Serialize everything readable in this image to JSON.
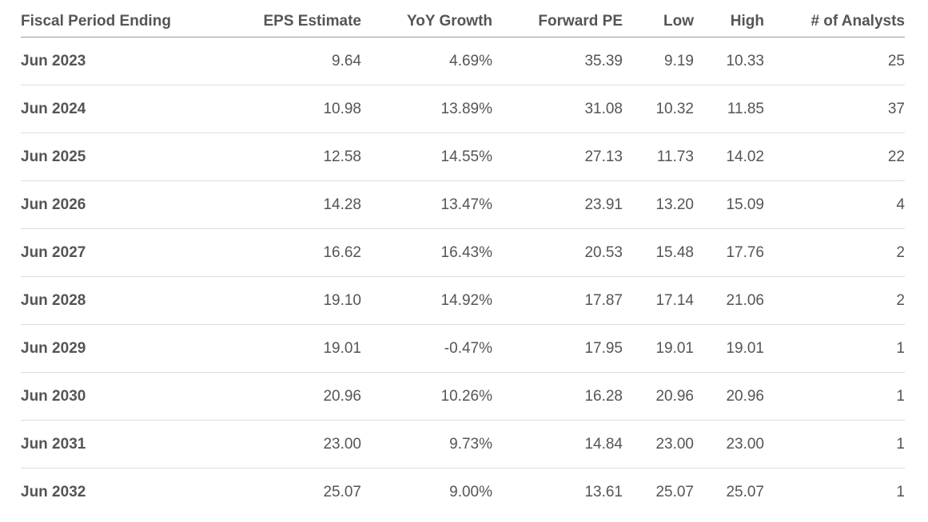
{
  "table": {
    "headers": {
      "period": "Fiscal Period Ending",
      "eps": "EPS Estimate",
      "yoy": "YoY Growth",
      "forward_pe": "Forward PE",
      "low": "Low",
      "high": "High",
      "analysts": "# of Analysts"
    },
    "rows": [
      {
        "period": "Jun 2023",
        "eps": "9.64",
        "yoy": "4.69%",
        "forward_pe": "35.39",
        "low": "9.19",
        "high": "10.33",
        "analysts": "25"
      },
      {
        "period": "Jun 2024",
        "eps": "10.98",
        "yoy": "13.89%",
        "forward_pe": "31.08",
        "low": "10.32",
        "high": "11.85",
        "analysts": "37"
      },
      {
        "period": "Jun 2025",
        "eps": "12.58",
        "yoy": "14.55%",
        "forward_pe": "27.13",
        "low": "11.73",
        "high": "14.02",
        "analysts": "22"
      },
      {
        "period": "Jun 2026",
        "eps": "14.28",
        "yoy": "13.47%",
        "forward_pe": "23.91",
        "low": "13.20",
        "high": "15.09",
        "analysts": "4"
      },
      {
        "period": "Jun 2027",
        "eps": "16.62",
        "yoy": "16.43%",
        "forward_pe": "20.53",
        "low": "15.48",
        "high": "17.76",
        "analysts": "2"
      },
      {
        "period": "Jun 2028",
        "eps": "19.10",
        "yoy": "14.92%",
        "forward_pe": "17.87",
        "low": "17.14",
        "high": "21.06",
        "analysts": "2"
      },
      {
        "period": "Jun 2029",
        "eps": "19.01",
        "yoy": "-0.47%",
        "forward_pe": "17.95",
        "low": "19.01",
        "high": "19.01",
        "analysts": "1"
      },
      {
        "period": "Jun 2030",
        "eps": "20.96",
        "yoy": "10.26%",
        "forward_pe": "16.28",
        "low": "20.96",
        "high": "20.96",
        "analysts": "1"
      },
      {
        "period": "Jun 2031",
        "eps": "23.00",
        "yoy": "9.73%",
        "forward_pe": "14.84",
        "low": "23.00",
        "high": "23.00",
        "analysts": "1"
      },
      {
        "period": "Jun 2032",
        "eps": "25.07",
        "yoy": "9.00%",
        "forward_pe": "13.61",
        "low": "25.07",
        "high": "25.07",
        "analysts": "1"
      }
    ]
  }
}
